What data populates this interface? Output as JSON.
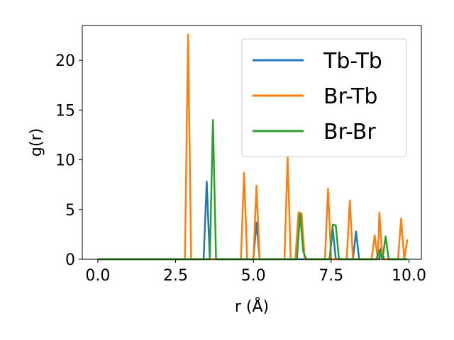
{
  "chart_data": {
    "type": "line",
    "xlabel": "r (Å)",
    "ylabel": "g(r)",
    "xlim": [
      -0.5,
      10.4
    ],
    "ylim": [
      0,
      23.5
    ],
    "xticks": [
      "0.0",
      "2.5",
      "5.0",
      "7.5",
      "10.0"
    ],
    "yticks": [
      "0",
      "5",
      "10",
      "15",
      "20"
    ],
    "legend_position": "top-right",
    "grid": false,
    "series": [
      {
        "name": "Tb-Tb",
        "color": "#1f77b4",
        "points": [
          [
            0.0,
            0
          ],
          [
            3.4,
            0
          ],
          [
            3.5,
            7.8
          ],
          [
            3.6,
            0
          ],
          [
            5.0,
            0
          ],
          [
            5.1,
            3.7
          ],
          [
            5.2,
            0
          ],
          [
            7.45,
            0
          ],
          [
            7.55,
            3.1
          ],
          [
            7.65,
            0
          ],
          [
            8.2,
            0
          ],
          [
            8.3,
            2.8
          ],
          [
            8.4,
            0
          ],
          [
            9.05,
            0
          ],
          [
            9.1,
            1.1
          ],
          [
            9.2,
            0
          ],
          [
            9.95,
            0
          ]
        ]
      },
      {
        "name": "Br-Tb",
        "color": "#ff7f0e",
        "points": [
          [
            0.0,
            0
          ],
          [
            2.8,
            0
          ],
          [
            2.9,
            22.6
          ],
          [
            3.0,
            0
          ],
          [
            4.6,
            0
          ],
          [
            4.7,
            8.7
          ],
          [
            4.8,
            0
          ],
          [
            5.0,
            0
          ],
          [
            5.1,
            7.4
          ],
          [
            5.2,
            0
          ],
          [
            6.0,
            0
          ],
          [
            6.1,
            10.3
          ],
          [
            6.2,
            0
          ],
          [
            6.35,
            0
          ],
          [
            6.45,
            4.7
          ],
          [
            6.55,
            4.6
          ],
          [
            6.65,
            0
          ],
          [
            7.3,
            0
          ],
          [
            7.4,
            7.1
          ],
          [
            7.5,
            0
          ],
          [
            8.0,
            0
          ],
          [
            8.1,
            5.9
          ],
          [
            8.2,
            0
          ],
          [
            8.8,
            0
          ],
          [
            8.9,
            2.4
          ],
          [
            9.0,
            0
          ],
          [
            9.05,
            4.7
          ],
          [
            9.15,
            0
          ],
          [
            9.65,
            0
          ],
          [
            9.75,
            4.1
          ],
          [
            9.85,
            0
          ],
          [
            9.95,
            2.0
          ]
        ]
      },
      {
        "name": "Br-Br",
        "color": "#2ca02c",
        "points": [
          [
            0.0,
            0
          ],
          [
            3.6,
            0
          ],
          [
            3.7,
            14.0
          ],
          [
            3.8,
            0
          ],
          [
            6.4,
            0
          ],
          [
            6.5,
            4.6
          ],
          [
            6.6,
            0.8
          ],
          [
            6.7,
            0
          ],
          [
            7.45,
            0
          ],
          [
            7.55,
            3.5
          ],
          [
            7.65,
            3.4
          ],
          [
            7.75,
            0
          ],
          [
            8.95,
            0
          ],
          [
            9.05,
            0.9
          ],
          [
            9.15,
            0
          ],
          [
            9.25,
            2.3
          ],
          [
            9.35,
            0
          ],
          [
            9.95,
            0
          ]
        ]
      }
    ]
  }
}
